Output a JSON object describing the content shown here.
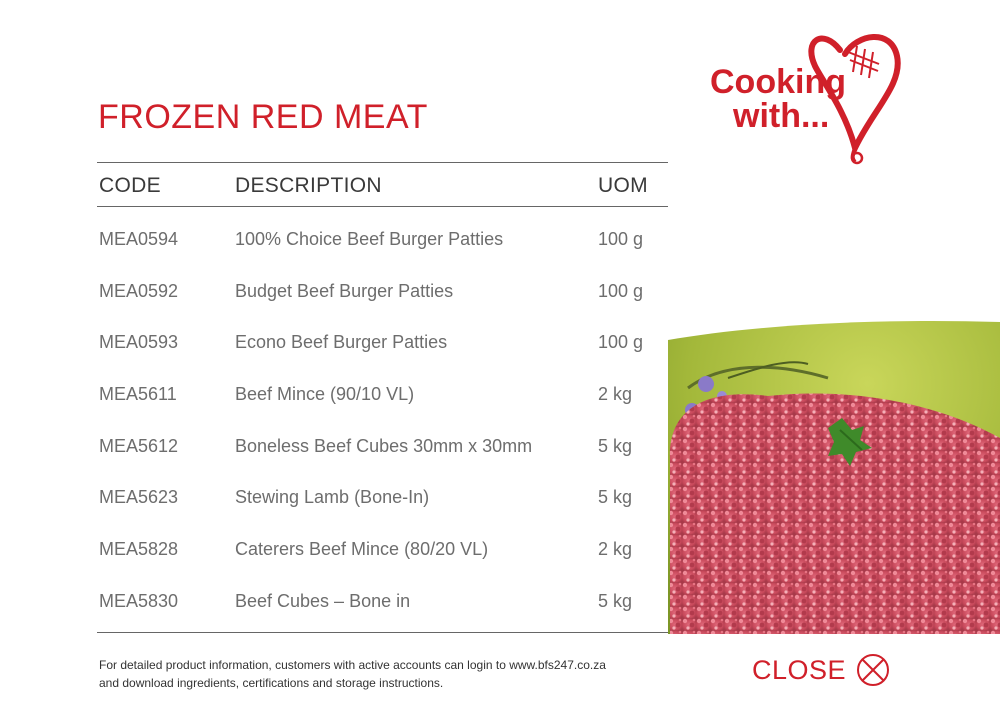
{
  "title": "FROZEN RED MEAT",
  "brand": {
    "logo_text_line1": "Cooking",
    "logo_text_line2": "with...",
    "color": "#d0202a"
  },
  "table": {
    "headers": {
      "code": "CODE",
      "description": "DESCRIPTION",
      "uom": "UOM"
    },
    "rows": [
      {
        "code": "MEA0594",
        "description": "100% Choice Beef Burger Patties",
        "uom": "100 g"
      },
      {
        "code": "MEA0592",
        "description": "Budget Beef Burger Patties",
        "uom": "100 g"
      },
      {
        "code": "MEA0593",
        "description": "Econo Beef Burger Patties",
        "uom": "100 g"
      },
      {
        "code": "MEA5611",
        "description": "Beef Mince (90/10 VL)",
        "uom": "2 kg"
      },
      {
        "code": "MEA5612",
        "description": "Boneless Beef Cubes 30mm x 30mm",
        "uom": "5 kg"
      },
      {
        "code": "MEA5623",
        "description": "Stewing Lamb (Bone-In)",
        "uom": "5 kg"
      },
      {
        "code": "MEA5828",
        "description": "Caterers Beef Mince (80/20 VL)",
        "uom": "2 kg"
      },
      {
        "code": "MEA5830",
        "description": "Beef Cubes – Bone in",
        "uom": "5 kg"
      }
    ]
  },
  "footer": {
    "line1": "For detailed product information, customers with active accounts can login to www.bfs247.co.za",
    "line2": "and download ingredients, certifications and storage instructions."
  },
  "close": {
    "label": "CLOSE",
    "icon": "close-circle-icon"
  },
  "image": {
    "subject": "minced-beef-on-green-plate"
  }
}
